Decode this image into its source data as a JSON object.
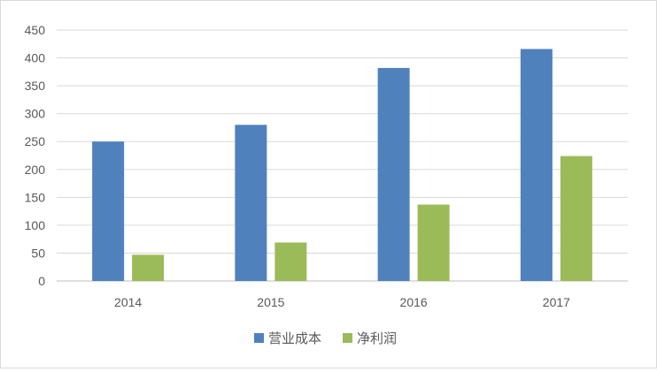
{
  "chart_data": {
    "type": "bar",
    "categories": [
      "2014",
      "2015",
      "2016",
      "2017"
    ],
    "series": [
      {
        "name": "营业成本",
        "values": [
          250,
          280,
          382,
          416
        ],
        "color": "#4f81bd"
      },
      {
        "name": "净利润",
        "values": [
          47,
          69,
          137,
          224
        ],
        "color": "#9bbb59"
      }
    ],
    "ylim": [
      0,
      450
    ],
    "yticks": [
      0,
      50,
      100,
      150,
      200,
      250,
      300,
      350,
      400,
      450
    ],
    "grid": true,
    "legend_position": "bottom",
    "gridline_color": "#d9d9d9",
    "axis_line_color": "#bfbfbf"
  }
}
